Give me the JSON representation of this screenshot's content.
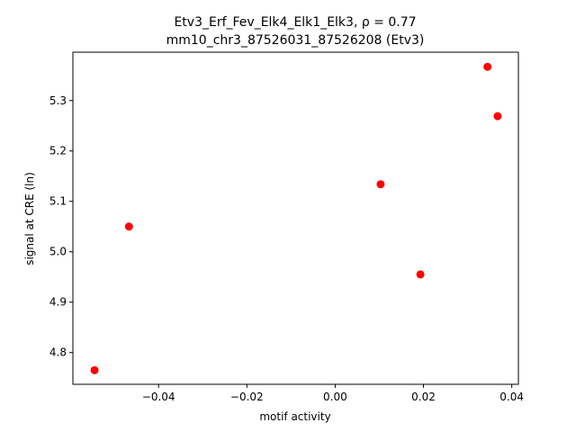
{
  "chart_data": {
    "type": "scatter",
    "title_line1": "Etv3_Erf_Fev_Elk4_Elk1_Elk3, ρ = 0.77",
    "title_line2": "mm10_chr3_87526031_87526208 (Etv3)",
    "xlabel": "motif activity",
    "ylabel": "signal at CRE (ln)",
    "xlim": [
      -0.0594,
      0.0415
    ],
    "ylim": [
      4.737,
      5.396
    ],
    "xticks": [
      -0.04,
      -0.02,
      0.0,
      0.02,
      0.04
    ],
    "xtick_labels": [
      "−0.04",
      "−0.02",
      "0.00",
      "0.02",
      "0.04"
    ],
    "yticks": [
      4.8,
      4.9,
      5.0,
      5.1,
      5.2,
      5.3
    ],
    "ytick_labels": [
      "4.8",
      "4.9",
      "5.0",
      "5.1",
      "5.2",
      "5.3"
    ],
    "grid": false,
    "series": [
      {
        "color": "#ff0000",
        "points": [
          {
            "x": -0.0545,
            "y": 4.765
          },
          {
            "x": -0.0467,
            "y": 5.05
          },
          {
            "x": 0.0103,
            "y": 5.134
          },
          {
            "x": 0.0193,
            "y": 4.955
          },
          {
            "x": 0.0345,
            "y": 5.367
          },
          {
            "x": 0.0368,
            "y": 5.269
          }
        ]
      }
    ]
  }
}
